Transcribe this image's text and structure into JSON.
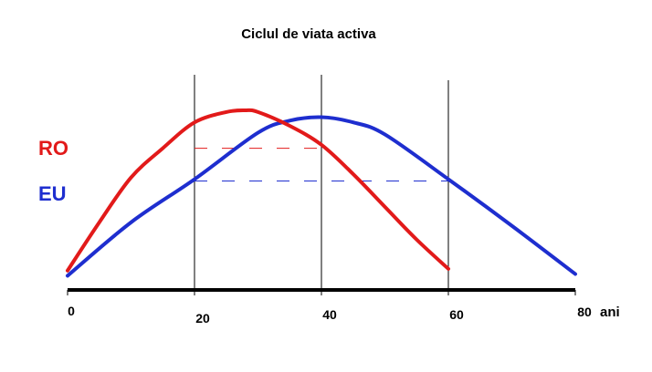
{
  "chart_data": {
    "type": "line",
    "title": "Ciclul de viata activa",
    "xlabel": "",
    "ylabel": "",
    "x_unit_label": "ani",
    "xlim": [
      0,
      80
    ],
    "ylim": [
      0,
      100
    ],
    "x_ticks": [
      {
        "value": 0,
        "label": "0"
      },
      {
        "value": 20,
        "label": "20"
      },
      {
        "value": 40,
        "label": "40"
      },
      {
        "value": 60,
        "label": "60"
      },
      {
        "value": 80,
        "label": "80"
      }
    ],
    "vertical_lines_at": [
      20,
      40,
      60
    ],
    "grid": false,
    "legend_placement": "left",
    "series": [
      {
        "name": "RO",
        "color": "#e21a1a",
        "x": [
          0,
          5,
          10,
          15,
          20,
          25,
          28,
          30,
          35,
          40,
          45,
          50,
          55,
          60
        ],
        "y": [
          7,
          35,
          61,
          78,
          93,
          99,
          100,
          99,
          91,
          80,
          63,
          44,
          25,
          8
        ],
        "reference_line": {
          "x_from": 20,
          "x_to": 40,
          "y": 78,
          "style": "dashed"
        }
      },
      {
        "name": "EU",
        "color": "#1e2ecf",
        "x": [
          0,
          10,
          20,
          30,
          35,
          40,
          45,
          50,
          60,
          70,
          80
        ],
        "y": [
          4,
          35,
          60,
          87,
          94,
          96,
          93,
          86,
          60,
          33,
          5
        ],
        "reference_line": {
          "x_from": 20,
          "x_to": 60,
          "y": 59,
          "style": "dashed"
        }
      }
    ]
  }
}
